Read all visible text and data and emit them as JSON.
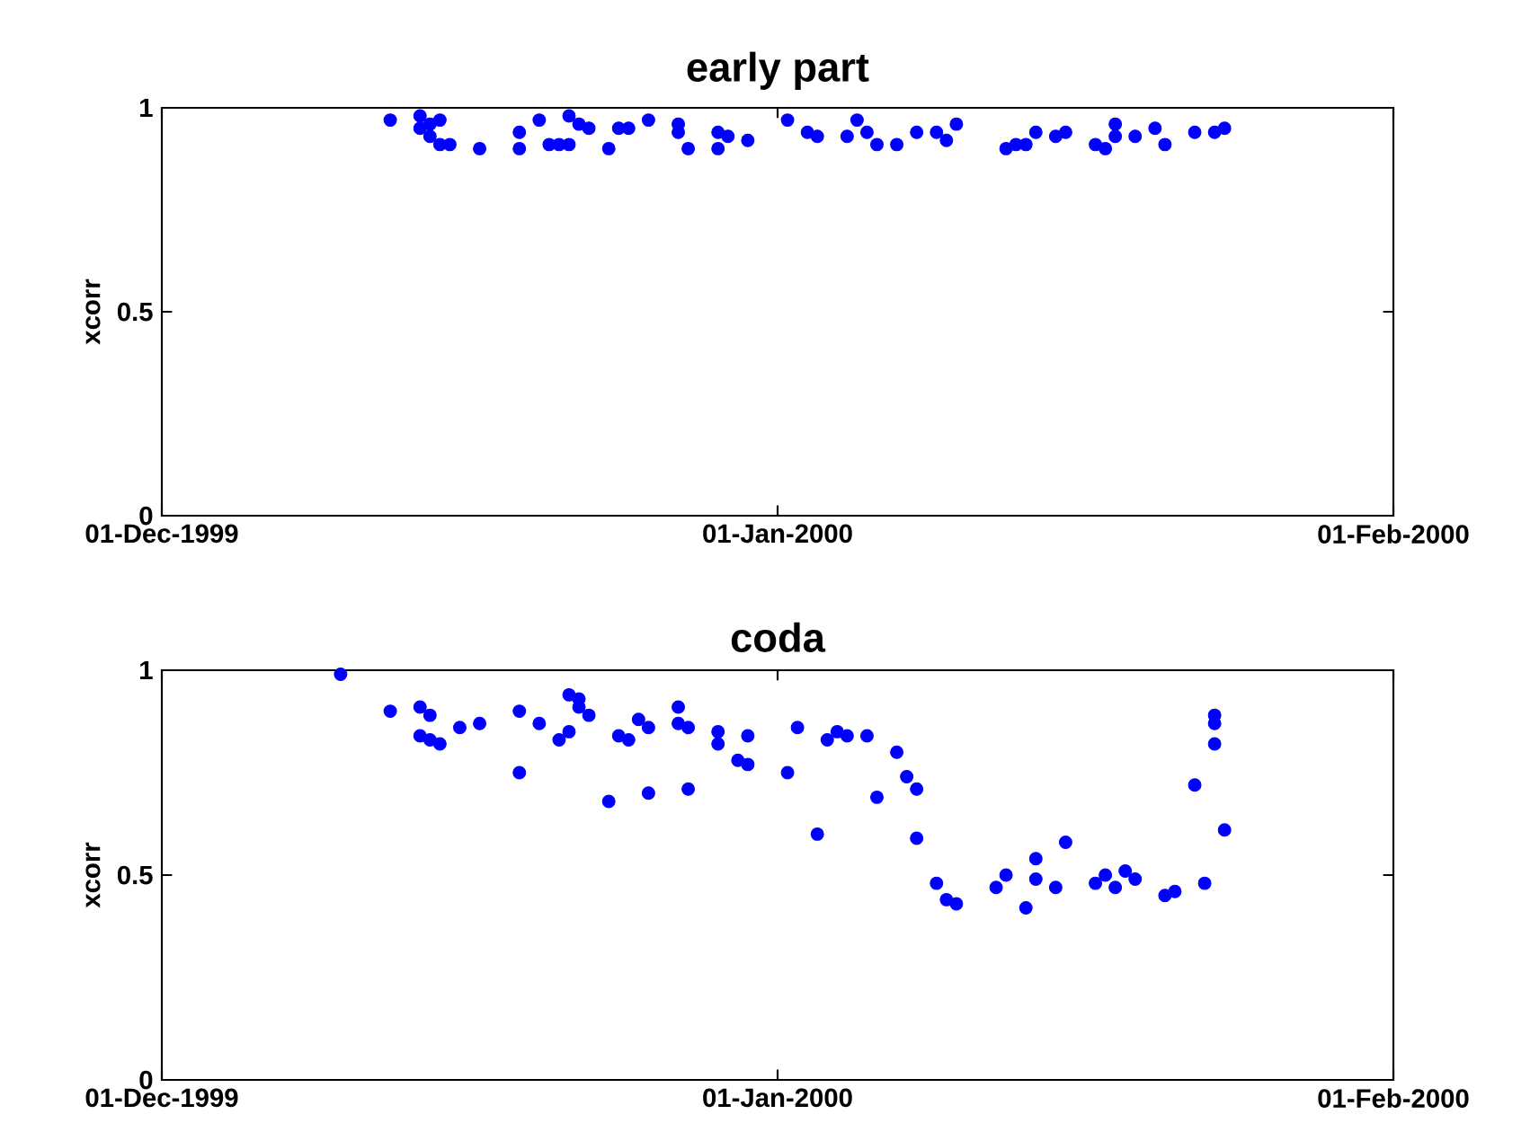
{
  "chart_data": [
    {
      "type": "scatter",
      "title": "early part",
      "ylabel": "xcorr",
      "color": "#0000ff",
      "marker": "circle",
      "x": [
        "1999-12-12T12:00",
        "1999-12-14",
        "1999-12-14",
        "1999-12-14T12:00",
        "1999-12-14T12:00",
        "1999-12-15",
        "1999-12-15",
        "1999-12-15T12:00",
        "1999-12-17",
        "1999-12-19",
        "1999-12-19",
        "1999-12-20",
        "1999-12-20T12:00",
        "1999-12-21T12:00",
        "1999-12-21",
        "1999-12-21T12:00",
        "1999-12-22",
        "1999-12-22T12:00",
        "1999-12-23T12:00",
        "1999-12-24",
        "1999-12-24T12:00",
        "1999-12-25T12:00",
        "1999-12-27",
        "1999-12-27",
        "1999-12-27T12:00",
        "1999-12-29",
        "1999-12-29",
        "1999-12-29T12:00",
        "1999-12-30T12:00",
        "2000-01-01T12:00",
        "2000-01-02T12:00",
        "2000-01-03",
        "2000-01-04T12:00",
        "2000-01-05",
        "2000-01-04T12:00",
        "2000-01-05T12:00",
        "2000-01-06",
        "2000-01-07",
        "2000-01-08",
        "2000-01-09",
        "2000-01-09T12:00",
        "2000-01-10",
        "2000-01-12T12:00",
        "2000-01-13",
        "2000-01-14",
        "2000-01-13T12:00",
        "2000-01-15T12:00",
        "2000-01-15",
        "2000-01-17",
        "2000-01-17T12:00",
        "2000-01-18",
        "2000-01-18",
        "2000-01-19",
        "2000-01-20",
        "2000-01-20T12:00",
        "2000-01-22",
        "2000-01-23",
        "2000-01-23T12:00"
      ],
      "values": [
        0.97,
        0.98,
        0.95,
        0.96,
        0.93,
        0.97,
        0.91,
        0.91,
        0.9,
        0.94,
        0.9,
        0.97,
        0.91,
        0.98,
        0.91,
        0.91,
        0.96,
        0.95,
        0.9,
        0.95,
        0.95,
        0.97,
        0.96,
        0.94,
        0.9,
        0.94,
        0.9,
        0.93,
        0.92,
        0.97,
        0.94,
        0.93,
        null,
        0.97,
        0.93,
        0.94,
        0.91,
        0.91,
        0.94,
        0.94,
        0.92,
        0.96,
        0.9,
        0.91,
        0.94,
        0.91,
        0.94,
        0.93,
        0.91,
        0.9,
        0.96,
        0.93,
        0.93,
        0.95,
        0.91,
        0.94,
        0.94,
        0.95
      ],
      "xlim": [
        "1999-12-01",
        "2000-02-01"
      ],
      "xticks": [
        {
          "value": "1999-12-01",
          "label": "01-Dec-1999"
        },
        {
          "value": "2000-01-01",
          "label": "01-Jan-2000"
        },
        {
          "value": "2000-02-01",
          "label": "01-Feb-2000"
        }
      ],
      "ylim": [
        0,
        1
      ],
      "yticks": [
        0,
        0.5,
        1
      ]
    },
    {
      "type": "scatter",
      "title": "coda",
      "ylabel": "xcorr",
      "color": "#0000ff",
      "marker": "circle",
      "x": [
        "1999-12-10",
        "1999-12-12T12:00",
        "1999-12-14",
        "1999-12-14T12:00",
        "1999-12-14",
        "1999-12-14T12:00",
        "1999-12-15",
        "1999-12-16",
        "1999-12-17",
        "1999-12-19",
        "1999-12-19",
        "1999-12-20",
        "1999-12-21",
        "1999-12-21T12:00",
        "1999-12-21T12:00",
        "1999-12-22",
        "1999-12-22",
        "1999-12-22T12:00",
        "1999-12-23T12:00",
        "1999-12-24",
        "1999-12-24T12:00",
        "1999-12-25",
        "1999-12-25T12:00",
        "1999-12-25T12:00",
        "1999-12-27",
        "1999-12-27",
        "1999-12-27T12:00",
        "1999-12-27T12:00",
        "1999-12-29",
        "1999-12-29",
        "1999-12-30",
        "1999-12-30T12:00",
        "1999-12-30T12:00",
        "2000-01-01T12:00",
        "2000-01-02",
        "2000-01-03",
        "2000-01-03T12:00",
        "2000-01-04",
        "2000-01-04T12:00",
        "2000-01-05T12:00",
        "2000-01-06",
        "2000-01-07",
        "2000-01-07T12:00",
        "2000-01-08",
        "2000-01-08",
        "2000-01-09",
        "2000-01-09T12:00",
        "2000-01-10",
        "2000-01-12",
        "2000-01-12T12:00",
        "2000-01-13T12:00",
        "2000-01-14",
        "2000-01-14",
        "2000-01-15",
        "2000-01-15T12:00",
        "2000-01-17",
        "2000-01-17T12:00",
        "2000-01-18",
        "2000-01-18T12:00",
        "2000-01-19",
        "2000-01-20T12:00",
        "2000-01-21",
        "2000-01-22",
        "2000-01-22T12:00",
        "2000-01-23",
        "2000-01-23",
        "2000-01-23",
        "2000-01-23T12:00"
      ],
      "values": [
        0.99,
        0.9,
        0.91,
        0.89,
        0.84,
        0.83,
        0.82,
        0.86,
        0.87,
        0.9,
        0.75,
        0.87,
        0.83,
        0.85,
        0.94,
        0.93,
        0.91,
        0.89,
        0.68,
        0.84,
        0.83,
        0.88,
        0.86,
        0.7,
        0.91,
        0.87,
        0.86,
        0.71,
        0.85,
        0.82,
        0.78,
        0.84,
        0.77,
        0.75,
        0.86,
        0.6,
        0.83,
        0.85,
        0.84,
        0.84,
        0.69,
        0.8,
        0.74,
        0.71,
        0.59,
        0.48,
        0.44,
        0.43,
        0.47,
        0.5,
        0.42,
        0.54,
        0.49,
        0.47,
        0.58,
        0.48,
        0.5,
        0.47,
        0.51,
        0.49,
        0.45,
        0.46,
        0.72,
        0.48,
        0.89,
        0.87,
        0.82,
        0.61
      ],
      "xlim": [
        "1999-12-01",
        "2000-02-01"
      ],
      "xticks": [
        {
          "value": "1999-12-01",
          "label": "01-Dec-1999"
        },
        {
          "value": "2000-01-01",
          "label": "01-Jan-2000"
        },
        {
          "value": "2000-02-01",
          "label": "01-Feb-2000"
        }
      ],
      "ylim": [
        0,
        1
      ],
      "yticks": [
        0,
        0.5,
        1
      ]
    }
  ]
}
